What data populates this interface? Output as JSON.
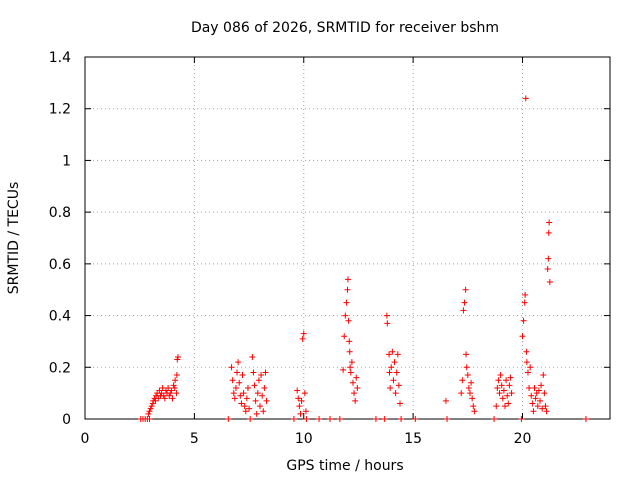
{
  "chart_data": {
    "type": "scatter",
    "title": "Day 086 of 2026, SRMTID for receiver bshm",
    "xlabel": "GPS time / hours",
    "ylabel": "SRMTID / TECUs",
    "xlim": [
      0,
      24
    ],
    "ylim": [
      0,
      1.4
    ],
    "xticks": [
      0,
      5,
      10,
      15,
      20
    ],
    "yticks": [
      0,
      0.2,
      0.4,
      0.6,
      0.8,
      1,
      1.2,
      1.4
    ],
    "xtick_labels": [
      "0",
      "5",
      "10",
      "15",
      "20"
    ],
    "ytick_labels": [
      "0",
      "0.2",
      "0.4",
      "0.6",
      "0.8",
      "1",
      "1.2",
      "1.4"
    ],
    "grid": true,
    "marker": "+",
    "marker_color": "#ff0000",
    "series": [
      {
        "name": "bshm",
        "points": [
          [
            2.55,
            0
          ],
          [
            2.65,
            0
          ],
          [
            2.75,
            0
          ],
          [
            2.85,
            0
          ],
          [
            2.95,
            0
          ],
          [
            2.9,
            0.02
          ],
          [
            2.95,
            0.03
          ],
          [
            3.0,
            0.04
          ],
          [
            3.05,
            0.05
          ],
          [
            3.1,
            0.06
          ],
          [
            3.12,
            0.07
          ],
          [
            3.18,
            0.08
          ],
          [
            3.22,
            0.07
          ],
          [
            3.25,
            0.09
          ],
          [
            3.3,
            0.1
          ],
          [
            3.35,
            0.08
          ],
          [
            3.4,
            0.11
          ],
          [
            3.45,
            0.09
          ],
          [
            3.5,
            0.1
          ],
          [
            3.55,
            0.12
          ],
          [
            3.6,
            0.09
          ],
          [
            3.65,
            0.08
          ],
          [
            3.7,
            0.11
          ],
          [
            3.75,
            0.1
          ],
          [
            3.8,
            0.12
          ],
          [
            3.85,
            0.09
          ],
          [
            3.9,
            0.1
          ],
          [
            3.95,
            0.11
          ],
          [
            4.0,
            0.08
          ],
          [
            4.05,
            0.13
          ],
          [
            4.1,
            0.12
          ],
          [
            4.12,
            0.15
          ],
          [
            4.18,
            0.1
          ],
          [
            4.2,
            0.17
          ],
          [
            4.22,
            0.23
          ],
          [
            4.25,
            0.24
          ],
          [
            6.55,
            0
          ],
          [
            6.7,
            0.2
          ],
          [
            6.75,
            0.15
          ],
          [
            6.8,
            0.1
          ],
          [
            6.85,
            0.08
          ],
          [
            6.9,
            0.12
          ],
          [
            6.95,
            0.18
          ],
          [
            7.0,
            0.22
          ],
          [
            7.05,
            0.14
          ],
          [
            7.1,
            0.09
          ],
          [
            7.15,
            0.06
          ],
          [
            7.2,
            0.17
          ],
          [
            7.25,
            0.1
          ],
          [
            7.3,
            0.05
          ],
          [
            7.35,
            0.03
          ],
          [
            7.4,
            0.08
          ],
          [
            7.45,
            0.12
          ],
          [
            7.5,
            0.04
          ],
          [
            7.55,
            0.0
          ],
          [
            7.65,
            0.24
          ],
          [
            7.7,
            0.18
          ],
          [
            7.75,
            0.13
          ],
          [
            7.8,
            0.07
          ],
          [
            7.85,
            0.02
          ],
          [
            7.9,
            0.1
          ],
          [
            7.95,
            0.15
          ],
          [
            8.0,
            0.05
          ],
          [
            8.05,
            0.17
          ],
          [
            8.1,
            0.09
          ],
          [
            8.15,
            0.03
          ],
          [
            8.2,
            0.12
          ],
          [
            8.25,
            0.18
          ],
          [
            8.3,
            0.07
          ],
          [
            9.55,
            0.0
          ],
          [
            9.7,
            0.11
          ],
          [
            9.75,
            0.08
          ],
          [
            9.8,
            0.05
          ],
          [
            9.85,
            0.02
          ],
          [
            9.9,
            0.07
          ],
          [
            9.95,
            0.31
          ],
          [
            10.0,
            0.33
          ],
          [
            10.05,
            0.1
          ],
          [
            10.1,
            0.03
          ],
          [
            10.12,
            0
          ],
          [
            10.7,
            0
          ],
          [
            11.2,
            0
          ],
          [
            11.65,
            0
          ],
          [
            11.8,
            0.19
          ],
          [
            11.85,
            0.32
          ],
          [
            11.9,
            0.4
          ],
          [
            11.95,
            0.45
          ],
          [
            12.0,
            0.5
          ],
          [
            12.02,
            0.54
          ],
          [
            12.05,
            0.38
          ],
          [
            12.08,
            0.3
          ],
          [
            12.1,
            0.26
          ],
          [
            12.12,
            0.2
          ],
          [
            12.15,
            0.18
          ],
          [
            12.2,
            0.22
          ],
          [
            12.25,
            0.14
          ],
          [
            12.3,
            0.1
          ],
          [
            12.35,
            0.07
          ],
          [
            12.4,
            0.16
          ],
          [
            12.45,
            0.12
          ],
          [
            13.3,
            0
          ],
          [
            13.7,
            0
          ],
          [
            13.8,
            0.4
          ],
          [
            13.82,
            0.37
          ],
          [
            13.9,
            0.25
          ],
          [
            13.92,
            0.18
          ],
          [
            13.95,
            0.12
          ],
          [
            14.0,
            0.2
          ],
          [
            14.05,
            0.26
          ],
          [
            14.1,
            0.15
          ],
          [
            14.15,
            0.22
          ],
          [
            14.2,
            0.1
          ],
          [
            14.25,
            0.18
          ],
          [
            14.3,
            0.25
          ],
          [
            14.35,
            0.13
          ],
          [
            14.4,
            0.06
          ],
          [
            14.45,
            0
          ],
          [
            15.1,
            0
          ],
          [
            16.5,
            0.07
          ],
          [
            16.55,
            0
          ],
          [
            17.2,
            0.1
          ],
          [
            17.25,
            0.15
          ],
          [
            17.3,
            0.42
          ],
          [
            17.35,
            0.45
          ],
          [
            17.4,
            0.5
          ],
          [
            17.42,
            0.25
          ],
          [
            17.45,
            0.2
          ],
          [
            17.5,
            0.17
          ],
          [
            17.55,
            0.12
          ],
          [
            17.6,
            0.1
          ],
          [
            17.65,
            0.14
          ],
          [
            17.7,
            0.08
          ],
          [
            17.75,
            0.05
          ],
          [
            17.8,
            0.03
          ],
          [
            18.7,
            0
          ],
          [
            18.8,
            0.05
          ],
          [
            18.85,
            0.12
          ],
          [
            18.9,
            0.15
          ],
          [
            18.95,
            0.1
          ],
          [
            19.0,
            0.17
          ],
          [
            19.05,
            0.13
          ],
          [
            19.1,
            0.08
          ],
          [
            19.15,
            0.11
          ],
          [
            19.2,
            0.05
          ],
          [
            19.25,
            0.15
          ],
          [
            19.3,
            0.09
          ],
          [
            19.35,
            0.06
          ],
          [
            19.4,
            0.13
          ],
          [
            19.45,
            0.16
          ],
          [
            19.5,
            0.1
          ],
          [
            19.95,
            0
          ],
          [
            20.0,
            0.32
          ],
          [
            20.05,
            0.38
          ],
          [
            20.1,
            0.45
          ],
          [
            20.12,
            0.48
          ],
          [
            20.15,
            1.24
          ],
          [
            20.18,
            0.26
          ],
          [
            20.2,
            0.22
          ],
          [
            20.25,
            0.18
          ],
          [
            20.3,
            0.12
          ],
          [
            20.35,
            0.2
          ],
          [
            20.4,
            0.09
          ],
          [
            20.45,
            0.06
          ],
          [
            20.5,
            0.03
          ],
          [
            20.55,
            0.12
          ],
          [
            20.6,
            0.08
          ],
          [
            20.65,
            0.1
          ],
          [
            20.7,
            0.05
          ],
          [
            20.75,
            0.11
          ],
          [
            20.8,
            0.07
          ],
          [
            20.85,
            0.13
          ],
          [
            20.9,
            0.04
          ],
          [
            20.95,
            0.17
          ],
          [
            21.0,
            0.1
          ],
          [
            21.05,
            0.05
          ],
          [
            21.1,
            0.03
          ],
          [
            21.15,
            0.58
          ],
          [
            21.18,
            0.62
          ],
          [
            21.2,
            0.72
          ],
          [
            21.22,
            0.76
          ],
          [
            21.25,
            0.53
          ],
          [
            22.9,
            0
          ]
        ]
      }
    ]
  }
}
